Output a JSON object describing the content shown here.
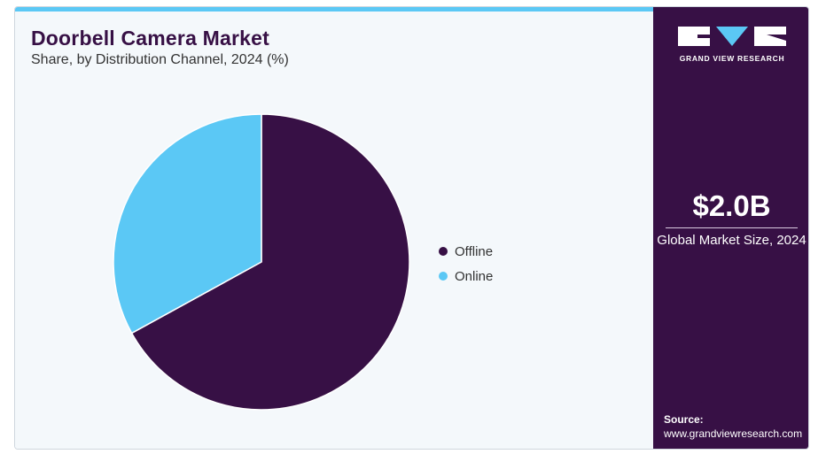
{
  "header": {
    "title": "Doorbell Camera Market",
    "subtitle": "Share, by Distribution Channel, 2024 (%)"
  },
  "chart_data": {
    "type": "pie",
    "title": "Doorbell Camera Market",
    "subtitle": "Share, by Distribution Channel, 2024 (%)",
    "categories": [
      "Offline",
      "Online"
    ],
    "values": [
      67,
      33
    ],
    "colors": [
      "#371045",
      "#5bc8f5"
    ],
    "start_angle": "12 o'clock",
    "direction": "clockwise",
    "legend_position": "right"
  },
  "legend": {
    "items": [
      {
        "label": "Offline",
        "color": "#371045"
      },
      {
        "label": "Online",
        "color": "#5bc8f5"
      }
    ]
  },
  "side_panel": {
    "logo_text": "GRAND VIEW RESEARCH",
    "market_value": "$2.0B",
    "market_label": "Global Market Size, 2024",
    "source_label": "Source:",
    "source_url": "www.grandviewresearch.com"
  },
  "colors": {
    "brand_purple": "#371045",
    "accent_blue": "#5bc8f5",
    "panel_background": "#f4f8fb"
  }
}
